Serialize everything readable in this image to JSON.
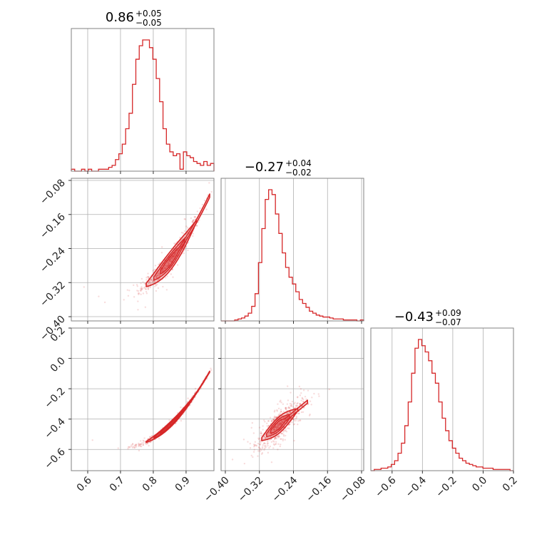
{
  "chart_data": {
    "type": "corner",
    "color": "#d62728",
    "grid": true,
    "diagonal_titles": [
      {
        "value": "0.86",
        "plus": "+0.05",
        "minus": "−0.05"
      },
      {
        "value": "−0.27",
        "plus": "+0.04",
        "minus": "−0.02"
      },
      {
        "value": "−0.43",
        "plus": "+0.09",
        "minus": "−0.07"
      }
    ],
    "params": [
      {
        "range": [
          0.55,
          0.985
        ],
        "ticks": [
          0.6,
          0.7,
          0.8,
          0.9
        ],
        "tick_labels": [
          "0.6",
          "0.7",
          "0.8",
          "0.9"
        ]
      },
      {
        "range": [
          -0.41,
          -0.075
        ],
        "ticks": [
          -0.4,
          -0.32,
          -0.24,
          -0.16,
          -0.08
        ],
        "tick_labels": [
          "−0.40",
          "−0.32",
          "−0.24",
          "−0.16",
          "−0.08"
        ]
      },
      {
        "range": [
          -0.74,
          0.2
        ],
        "ticks": [
          -0.6,
          -0.4,
          -0.2,
          0.0,
          0.2
        ],
        "tick_labels": [
          "−0.6",
          "−0.4",
          "−0.2",
          "0.0",
          "0.2"
        ]
      }
    ],
    "histograms": [
      {
        "param": 0,
        "bins": [
          0.55,
          0.985
        ],
        "counts": [
          1,
          0,
          0,
          1,
          0,
          1,
          0,
          0,
          1,
          1,
          1,
          2,
          3,
          6,
          9,
          14,
          22,
          30,
          45,
          58,
          65,
          68,
          68,
          64,
          58,
          48,
          36,
          22,
          14,
          10,
          8,
          9,
          1,
          10,
          8,
          7,
          5,
          4,
          3,
          5,
          3,
          4
        ]
      },
      {
        "param": 1,
        "bins": [
          -0.41,
          -0.075
        ],
        "counts": [
          0,
          0,
          0,
          0,
          1,
          2,
          3,
          5,
          8,
          15,
          28,
          60,
          95,
          125,
          135,
          130,
          110,
          90,
          70,
          55,
          45,
          38,
          30,
          22,
          18,
          14,
          10,
          8,
          6,
          5,
          4,
          4,
          3,
          2,
          2,
          2,
          1,
          1,
          1,
          1,
          0,
          1
        ]
      },
      {
        "param": 2,
        "bins": [
          -0.74,
          0.2
        ],
        "counts": [
          0,
          1,
          1,
          2,
          2,
          3,
          5,
          8,
          14,
          22,
          36,
          55,
          78,
          98,
          105,
          100,
          95,
          88,
          78,
          70,
          55,
          42,
          32,
          24,
          18,
          14,
          10,
          8,
          6,
          5,
          4,
          3,
          3,
          2,
          2,
          2,
          1,
          1,
          1,
          1,
          1,
          0
        ]
      }
    ],
    "scatter_panels": [
      {
        "x_param": 0,
        "y_param": 1,
        "relation": "y = -0.28 + 0.9*(x-0.84) + 2.6*(x-0.84)^2"
      },
      {
        "x_param": 0,
        "y_param": 2,
        "relation": "y = -0.46 + 1.9*(x-0.84) + 7.0*(x-0.84)^2"
      },
      {
        "x_param": 1,
        "y_param": 2,
        "relation": "y = -0.43 + 2.3*(x+0.27)"
      }
    ]
  }
}
